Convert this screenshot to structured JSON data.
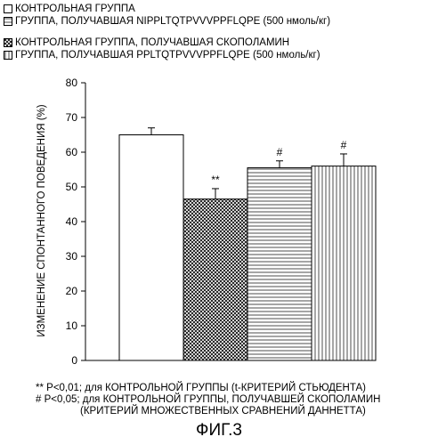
{
  "chart_data": {
    "type": "bar",
    "categories": [
      "КОНТРОЛЬНАЯ ГРУППА",
      "КОНТРОЛЬНАЯ ГРУППА, ПОЛУЧАВШАЯ СКОПОЛАМИН",
      "ГРУППА, ПОЛУЧАВШАЯ NIPPLTQTPVVVPPFLQPE (500 нмоль/кг)",
      "ГРУППА, ПОЛУЧАВШАЯ PPLTQTPVVVPPFLQPE (500 нмоль/кг)"
    ],
    "values": [
      65,
      46.5,
      55.5,
      56
    ],
    "errors": [
      2,
      3,
      2,
      3.5
    ],
    "annotations": [
      "",
      "**",
      "#",
      "#"
    ],
    "patterns": [
      "blank",
      "crosshatch",
      "horizontal",
      "vertical"
    ],
    "ylabel": "ИЗМЕНЕНИЕ СПОНТАННОГО ПОВЕДЕНИЯ (%)",
    "ylim": [
      0,
      80
    ],
    "yticks": [
      "0",
      "10",
      "20",
      "30",
      "40",
      "50",
      "60",
      "70",
      "80"
    ],
    "grid": false
  },
  "legend": [
    {
      "label": "КОНТРОЛЬНАЯ ГРУППА",
      "pattern": "blank"
    },
    {
      "label": "ГРУППА, ПОЛУЧАВШАЯ NIPPLTQTPVVVPPFLQPE (500 нмоль/кг)",
      "pattern": "horizontal"
    },
    {
      "label": "КОНТРОЛЬНАЯ ГРУППА, ПОЛУЧАВШАЯ СКОПОЛАМИН",
      "pattern": "crosshatch"
    },
    {
      "label": "ГРУППА, ПОЛУЧАВШАЯ PPLTQTPVVVPPFLQPE (500 нмоль/кг)",
      "pattern": "vertical"
    }
  ],
  "footnotes": {
    "line1": "** P<0,01; для КОНТРОЛЬНОЙ ГРУППЫ (t-КРИТЕРИЙ СТЬЮДЕНТА)",
    "line2": "# P<0,05; для КОНТРОЛЬНОЙ ГРУППЫ, ПОЛУЧАВШЕЙ СКОПОЛАМИН",
    "line3": "(КРИТЕРИЙ МНОЖЕСТВЕННЫХ СРАВНЕНИЙ ДАННЕТТА)"
  },
  "figure_label": "ФИГ.3"
}
